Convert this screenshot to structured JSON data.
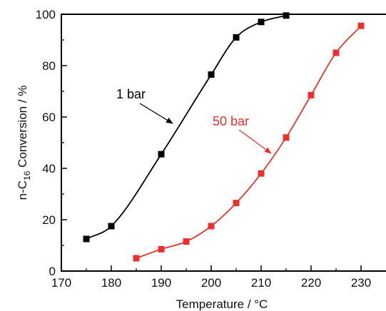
{
  "chart_data": {
    "type": "line",
    "xlabel": "Temperature /  °C",
    "ylabel": "n-C16 Conversion /  %",
    "ylabel_parts": {
      "prefix": "n-C",
      "subscript": "16",
      "suffix": " Conversion /  %"
    },
    "xlim": [
      170,
      235
    ],
    "ylim": [
      0,
      100
    ],
    "xticks": [
      170,
      180,
      190,
      200,
      210,
      220,
      230
    ],
    "yticks": [
      0,
      20,
      40,
      60,
      80,
      100
    ],
    "grid": false,
    "series": [
      {
        "name": "1 bar",
        "color": "#000000",
        "marker": "square",
        "x": [
          175,
          180,
          190,
          200,
          205,
          210,
          215
        ],
        "y": [
          12.5,
          17.5,
          45.5,
          76.5,
          91,
          97,
          99.5
        ]
      },
      {
        "name": "50 bar",
        "color": "#e8322d",
        "marker": "square",
        "x": [
          185,
          190,
          195,
          200,
          205,
          210,
          215,
          220,
          225,
          230
        ],
        "y": [
          5,
          8.5,
          11.5,
          17.5,
          26.5,
          38,
          52,
          68.5,
          85,
          95.5
        ]
      }
    ],
    "annotations": [
      {
        "text": "1 bar",
        "series": 0,
        "color": "#000000"
      },
      {
        "text": "50 bar",
        "series": 1,
        "color": "#e8322d"
      }
    ]
  }
}
